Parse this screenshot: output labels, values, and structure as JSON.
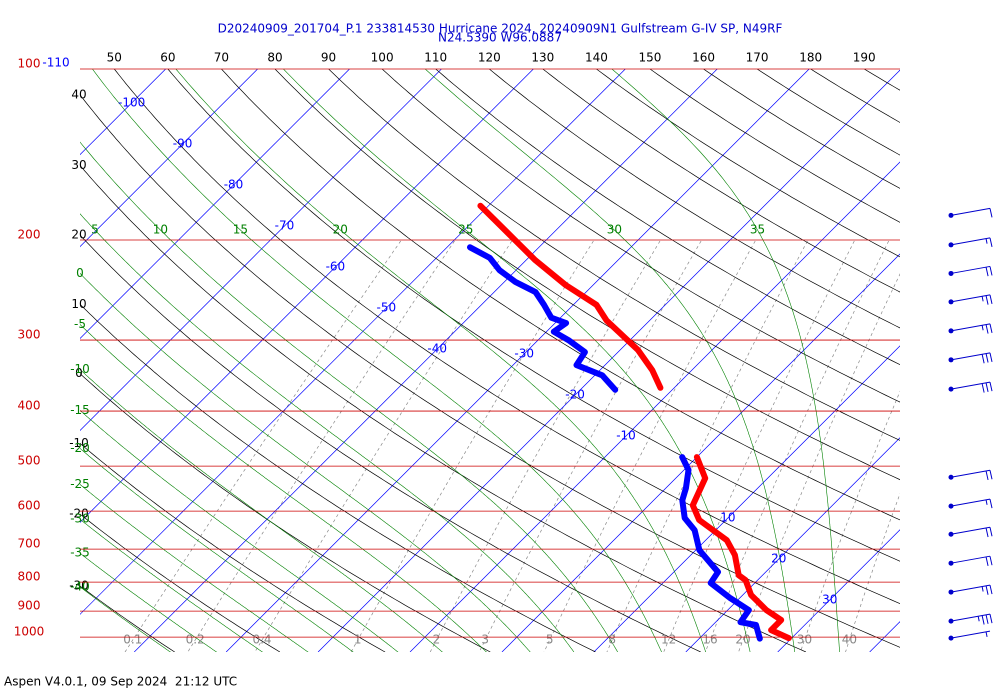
{
  "chart_data": {
    "type": "skewt",
    "title": "D20240909_201704_P.1 233814530 Hurricane 2024, 20240909N1 Gulfstream G-IV SP, N49RF",
    "subtitle": "N24.5390 W96.0887",
    "footer": "Aspen V4.0.1, 09 Sep 2024  21:12 UTC",
    "log_scale": true,
    "ylim": [
      100,
      1062
    ],
    "yticks": [
      100,
      200,
      300,
      400,
      500,
      600,
      700,
      800,
      900,
      1000
    ],
    "xlim": [
      -45.9,
      43.3
    ],
    "isobar_color": "#cc0000",
    "isotherms": {
      "color": "#0000ff",
      "lines": [
        -110,
        -100,
        -90,
        -80,
        -70,
        -60,
        -50,
        -40,
        -30,
        -20,
        -10,
        0,
        10,
        20,
        30,
        40,
        50,
        60
      ],
      "labels": [
        -110,
        -100,
        -90,
        -80,
        -70,
        -60,
        -50,
        -40,
        -30,
        -20,
        -10,
        10,
        20,
        30
      ]
    },
    "dry_adiabats": {
      "color": "#000000",
      "values": [
        -40,
        -30,
        -20,
        -10,
        0,
        10,
        20,
        30,
        40,
        50,
        60,
        70,
        80,
        90,
        100,
        110,
        120,
        130,
        140,
        150,
        160,
        170,
        180,
        190
      ]
    },
    "moist_adiabats": {
      "color": "#008000",
      "values": [
        -40,
        -35,
        -30,
        -25,
        -20,
        -15,
        -10,
        -5,
        0,
        5,
        10,
        15,
        20,
        25,
        30,
        35
      ]
    },
    "mixing_ratio": {
      "color": "#888888",
      "values": [
        0.1,
        0.2,
        0.4,
        1,
        2,
        3,
        5,
        8,
        12,
        16,
        20,
        30,
        40
      ]
    },
    "series": [
      {
        "color": "#ff0000",
        "pressure": [
          1004,
          972,
          933,
          896,
          843,
          794,
          778,
          717,
          675,
          622,
          586,
          525,
          482,
          null,
          364,
          339,
          312,
          277,
          260,
          240,
          217,
          200,
          174
        ],
        "values": [
          29.7,
          26.9,
          26.9,
          24.2,
          20.9,
          18.7,
          17.4,
          14.8,
          12.3,
          7.1,
          4.8,
          3.2,
          0,
          null,
          -11.5,
          -14.3,
          -18.1,
          -24.7,
          -27.5,
          -33,
          -39,
          -43.4,
          -50.9
        ]
      },
      {
        "color": "#0000ff",
        "pressure": [
          1006,
          952,
          941,
          896,
          854,
          803,
          768,
          703,
          648,
          617,
          574,
          547,
          508,
          482,
          null,
          367,
          346,
          332,
          315,
          300,
          290,
          280,
          274,
          260,
          247,
          237,
          226,
          215,
          206
        ],
        "values": [
          26.6,
          24.7,
          22.7,
          22.3,
          19,
          15.2,
          14.8,
          10.4,
          7.7,
          5.3,
          3.1,
          2.2,
          0.5,
          -1.6,
          null,
          -16.2,
          -19.2,
          -23.1,
          -23.6,
          -26.7,
          -29.2,
          -28.8,
          -31,
          -33.2,
          -35.5,
          -38.8,
          -41.8,
          -44.2,
          -47.5
        ]
      }
    ],
    "wind": {
      "color": "#0000cc",
      "pressure": [
        181,
        204,
        229,
        257,
        289,
        325,
        366,
        523,
        588,
        659,
        741,
        833,
        937,
        1004
      ],
      "speed": [
        10,
        15,
        20,
        25,
        25,
        30,
        30,
        20,
        15,
        20,
        20,
        25,
        35,
        5
      ]
    }
  }
}
